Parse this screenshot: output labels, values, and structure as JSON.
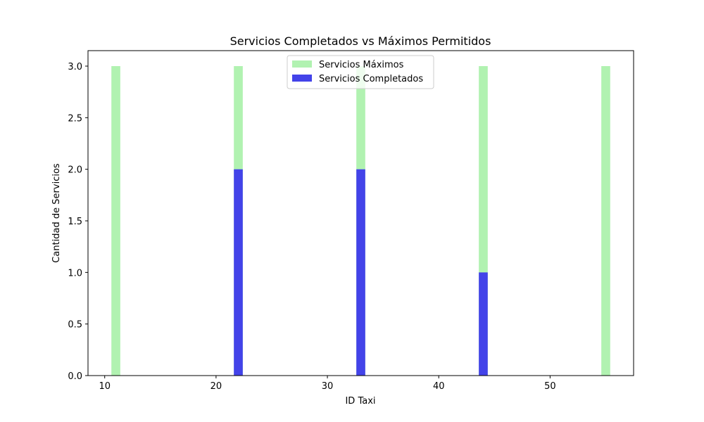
{
  "chart_data": {
    "type": "bar",
    "title": "Servicios Completados vs Máximos Permitidos",
    "xlabel": "ID Taxi",
    "ylabel": "Cantidad de Servicios",
    "x": [
      11,
      22,
      33,
      44,
      55
    ],
    "bar_width": 0.8,
    "xlim": [
      8.5,
      57.5
    ],
    "ylim": [
      0,
      3.15
    ],
    "xticks": [
      10,
      20,
      30,
      40,
      50
    ],
    "yticks": [
      0.0,
      0.5,
      1.0,
      1.5,
      2.0,
      2.5,
      3.0
    ],
    "xtick_labels": [
      "10",
      "20",
      "30",
      "40",
      "50"
    ],
    "ytick_labels": [
      "0.0",
      "0.5",
      "1.0",
      "1.5",
      "2.0",
      "2.5",
      "3.0"
    ],
    "grid": false,
    "legend_position": "top-center",
    "series": [
      {
        "name": "Servicios Máximos",
        "values": [
          3,
          3,
          3,
          3,
          3
        ],
        "color": "#b1f2b1"
      },
      {
        "name": "Servicios Completados",
        "values": [
          0,
          2,
          2,
          1,
          0
        ],
        "color": "#4343e9"
      }
    ]
  }
}
